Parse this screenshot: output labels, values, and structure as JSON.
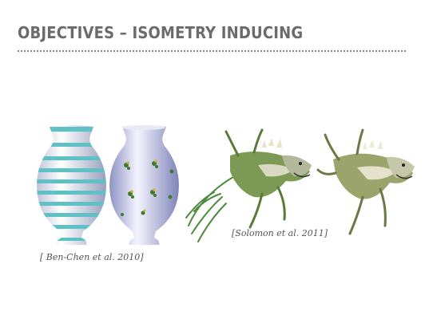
{
  "slide": {
    "title": "OBJECTIVES – ISOMETRY INDUCING",
    "citation_left": "[ Ben-Chen et al. 2010]",
    "citation_right": "[Solomon et al. 2011]"
  },
  "colors": {
    "title": "#6b6b6b",
    "stripe": "#5fc1c6",
    "vase_shade": "#c9cde8",
    "creature_green": "#4c8a3c",
    "creature_body": "#d9d9c2"
  },
  "figures": [
    {
      "name": "striped-vase"
    },
    {
      "name": "floral-vase"
    },
    {
      "name": "green-creature"
    },
    {
      "name": "textured-creature"
    }
  ]
}
